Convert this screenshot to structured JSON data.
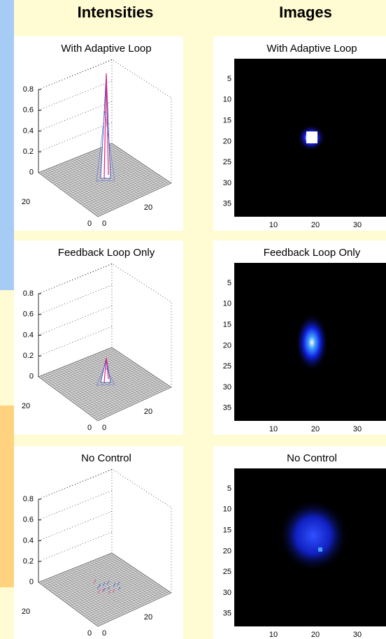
{
  "header": {
    "left": "Intensities",
    "right": "Images"
  },
  "intensity_plots": [
    {
      "title": "With Adaptive Loop",
      "zticks": [
        0.8,
        0.6,
        0.4,
        0.2,
        0
      ],
      "axis_labels": [
        20,
        0,
        0,
        20
      ]
    },
    {
      "title": "Feedback Loop Only",
      "zticks": [
        0.8,
        0.6,
        0.4,
        0.2,
        0
      ],
      "axis_labels": [
        20,
        0,
        0,
        20
      ]
    },
    {
      "title": "No Control",
      "zticks": [
        0.8,
        0.6,
        0.4,
        0.2,
        0
      ],
      "axis_labels": [
        20,
        0,
        0,
        20
      ]
    }
  ],
  "image_plots": [
    {
      "title": "With Adaptive Loop",
      "yticks": [
        5,
        10,
        15,
        20,
        25,
        30,
        35
      ],
      "xticks": [
        10,
        20,
        30
      ]
    },
    {
      "title": "Feedback Loop Only",
      "yticks": [
        5,
        10,
        15,
        20,
        25,
        30,
        35
      ],
      "xticks": [
        10,
        20,
        30
      ]
    },
    {
      "title": "No Control",
      "yticks": [
        5,
        10,
        15,
        20,
        25,
        30,
        35
      ],
      "xticks": [
        10,
        20,
        30
      ]
    }
  ]
}
